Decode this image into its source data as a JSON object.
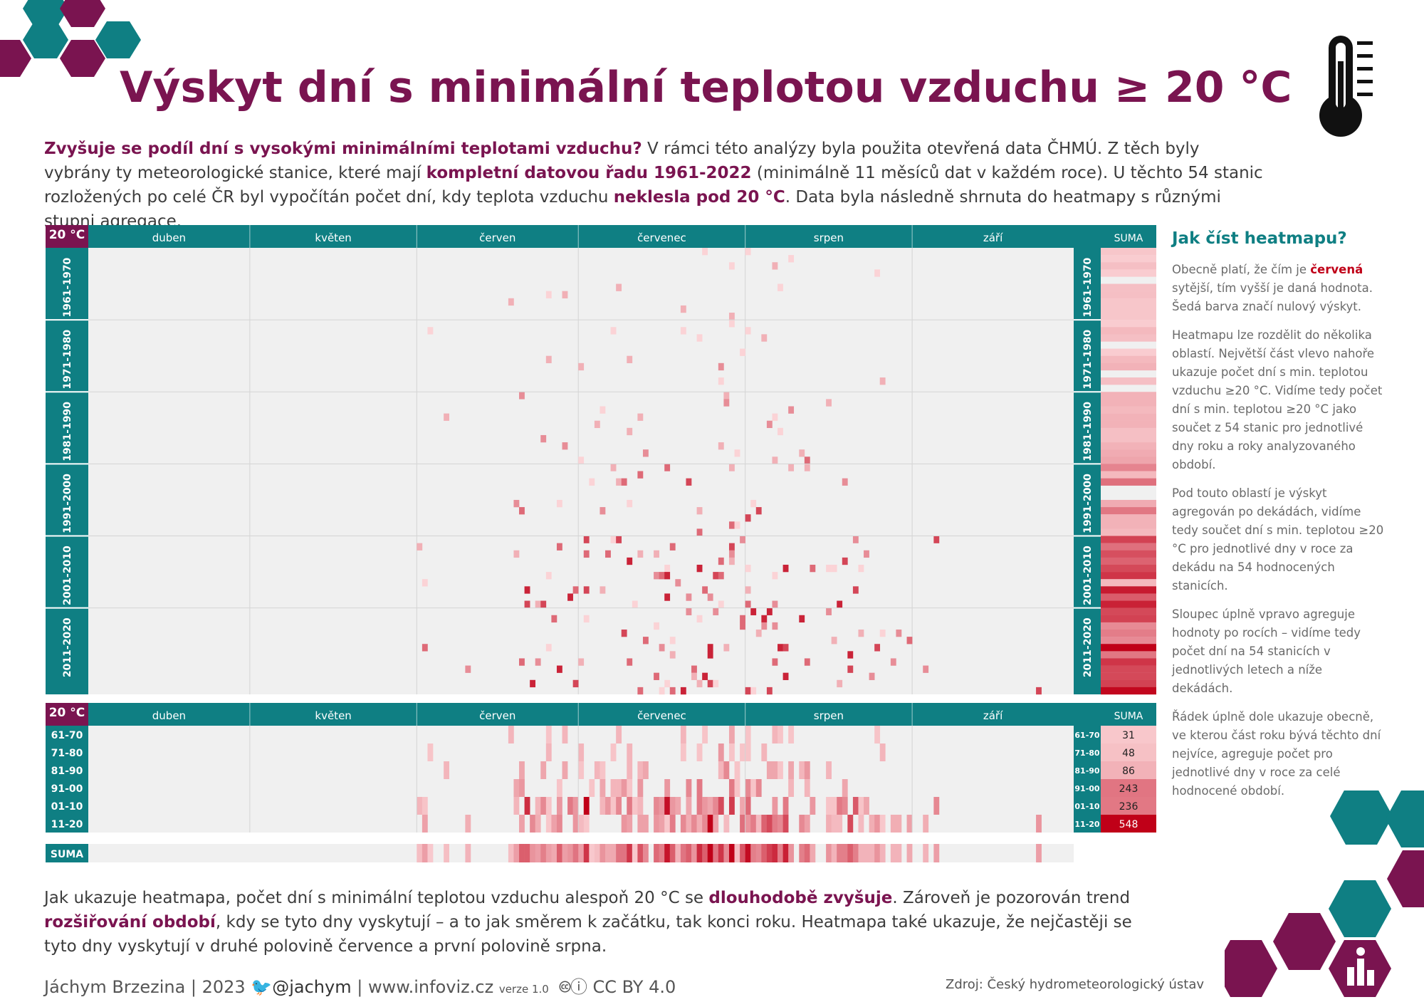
{
  "title": "Výskyt dní s minimální teplotou vzduchu ≥ 20 °C",
  "intro": {
    "q": "Zvyšuje se podíl dní s vysokými minimálními teplotami vzduchu?",
    "t1": " V rámci této analýzy byla použita otevřená data ČHMÚ. Z těch byly vybrány ty meteorologické stanice, které mají ",
    "b1": "kompletní datovou řadu 1961-2022",
    "t2": " (minimálně 11 měsíců dat v každém roce). U těchto 54 stanic rozložených po celé ČR byl vypočítán počet dní, kdy teplota vzduchu ",
    "b2": "neklesla pod 20 °C",
    "t3": ". Data byla následně shrnuta do heatmapy s různými stupni agregace."
  },
  "chart_data": {
    "type": "heatmap",
    "corner_label": "20 °C",
    "months": [
      "duben",
      "květen",
      "červen",
      "červenec",
      "srpen",
      "září"
    ],
    "month_days": [
      30,
      31,
      30,
      31,
      31,
      30
    ],
    "sum_label": "SUMA",
    "decades_long": [
      "1961-1970",
      "1971-1980",
      "1981-1990",
      "1991-2000",
      "2001-2010",
      "2011-2020"
    ],
    "decades_short": [
      "61-70",
      "71-80",
      "81-90",
      "91-00",
      "01-10",
      "11-20"
    ],
    "years": [
      1961,
      2022
    ],
    "decade_sums": [
      31,
      48,
      86,
      243,
      236,
      548
    ],
    "bottom_label": "SUMA",
    "color_scale": {
      "zero": "#f0f0f0",
      "low": "#fbd3d6",
      "high": "#c00018"
    }
  },
  "guide": {
    "title": "Jak číst heatmapu?",
    "p1a": "Obecně platí, že čím je ",
    "p1b": "červená",
    "p1c": " sytější, tím vyšší je daná hodnota. Šedá barva značí nulový výskyt.",
    "p2": "Heatmapu lze rozdělit do několika oblastí. Největší část vlevo nahoře ukazuje počet dní s min. teplotou vzduchu ≥20 °C. Vidíme tedy počet dní s min. teplotou ≥20 °C jako součet z 54 stanic pro jednotlivé dny roku a roky analyzovaného období.",
    "p3": "Pod touto oblastí je výskyt agregován po dekádách, vidíme tedy součet dní s min. teplotou ≥20 °C pro jednotlivé dny v roce za dekádu na 54 hodnocených stanicích.",
    "p4": "Sloupec úplně vpravo agreguje hodnoty po rocích – vidíme tedy počet dní na 54 stanicích v jednotlivých letech a níže dekádách.",
    "p5": "Řádek úplně dole ukazuje obecně, ve kterou část roku bývá těchto dní nejvíce, agreguje počet pro jednotlivé dny v roce za celé hodnocené období."
  },
  "outro": {
    "t1": "Jak ukazuje heatmapa, počet dní s minimální teplotou vzduchu alespoň 20 °C se ",
    "b1": "dlouhodobě zvyšuje",
    "t2": ". Zároveň je pozorován trend ",
    "b2": "rozšiřování období",
    "t3": ", kdy se tyto dny vyskytují – a to jak směrem k začátku, tak konci roku. Heatmapa také ukazuje, že nejčastěji se tyto dny vyskytují v druhé polovině července a první polovině srpna."
  },
  "footer": {
    "author": "Jáchym Brzezina | 2023",
    "twitter": "@jachym",
    "site": " | www.infoviz.cz",
    "version": "verze 1.0",
    "license": "CC BY 4.0",
    "source": "Zdroj: Český hydrometeorologický ústav"
  },
  "colors": {
    "brand": "#7a1450",
    "teal": "#0f7f83",
    "red": "#c00018",
    "grey": "#f0f0f0"
  }
}
